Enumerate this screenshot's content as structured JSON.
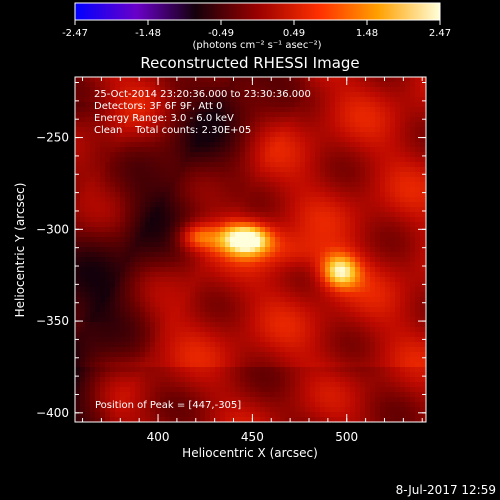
{
  "chart_data": {
    "type": "heatmap",
    "title": "Reconstructed RHESSI Image",
    "xlabel": "Heliocentric X (arcsec)",
    "ylabel": "Heliocentric Y (arcsec)",
    "xlim": [
      356,
      542
    ],
    "ylim": [
      -405,
      -217
    ],
    "x_ticks": [
      400,
      450,
      500
    ],
    "y_ticks": [
      -250,
      -300,
      -350,
      -400
    ],
    "colorbar": {
      "ticks": [
        "-2.47",
        "-1.48",
        "-0.49",
        "0.49",
        "1.48",
        "2.47"
      ],
      "range": [
        -2.47,
        2.47
      ],
      "unit_label": "(photons cm⁻² s⁻¹ asec⁻²)",
      "colormap": [
        "#0000ff",
        "#6a00c8",
        "#000000",
        "#a00000",
        "#ff3000",
        "#ffa000",
        "#ffffc0"
      ]
    },
    "info_lines": [
      "25-Oct-2014 23:20:36.000 to 23:30:36.000",
      "Detectors: 3F 6F 9F, Att 0",
      "Energy Range: 3.0 - 6.0 keV",
      "Clean    Total counts: 2.30E+05"
    ],
    "peak_label": "Position of Peak = [447,-305]",
    "peak": {
      "x": 447,
      "y": -305
    },
    "sources": [
      {
        "x": 447,
        "y": -305,
        "peak": 2.47
      },
      {
        "x": 420,
        "y": -304,
        "peak": 1.9
      },
      {
        "x": 496,
        "y": -323,
        "peak": 2.1
      }
    ]
  },
  "footer_date": "8-Jul-2017 12:59"
}
